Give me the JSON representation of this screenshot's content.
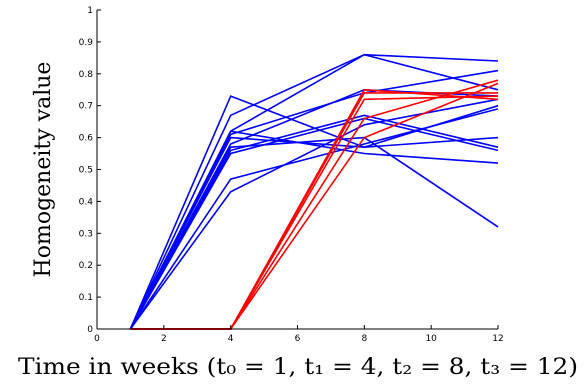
{
  "chart_data": {
    "type": "line",
    "title": "",
    "xlabel": "Time in weeks (t₀ = 1, t₁ = 4, t₂ = 8, t₃ = 12)",
    "ylabel": "Homogeneity value",
    "xlim": [
      0,
      12
    ],
    "ylim": [
      0,
      1
    ],
    "xticks": [
      0,
      2,
      4,
      6,
      8,
      10,
      12
    ],
    "yticks": [
      0,
      0.1,
      0.2,
      0.3,
      0.4,
      0.5,
      0.6,
      0.7,
      0.8,
      0.9,
      1
    ],
    "xtick_labels": [
      "0",
      "2",
      "4",
      "6",
      "8",
      "10",
      "12"
    ],
    "ytick_labels": [
      "0",
      "0.1",
      "0.2",
      "0.3",
      "0.4",
      "0.5",
      "0.6",
      "0.7",
      "0.8",
      "0.9",
      "1"
    ],
    "grid": false,
    "legend": "none",
    "x": [
      1,
      4,
      8,
      12
    ],
    "series": [
      {
        "color": "#0000ff",
        "values": [
          0,
          0.73,
          0.57,
          0.7
        ]
      },
      {
        "color": "#0000ff",
        "values": [
          0,
          0.67,
          0.86,
          0.84
        ]
      },
      {
        "color": "#0000ff",
        "values": [
          0,
          0.62,
          0.86,
          0.75
        ]
      },
      {
        "color": "#0000ff",
        "values": [
          0,
          0.61,
          0.74,
          0.81
        ]
      },
      {
        "color": "#0000ff",
        "values": [
          0,
          0.58,
          0.75,
          0.73
        ]
      },
      {
        "color": "#0000ff",
        "values": [
          0,
          0.6,
          0.57,
          0.6
        ]
      },
      {
        "color": "#0000ff",
        "values": [
          0,
          0.55,
          0.66,
          0.56
        ]
      },
      {
        "color": "#0000ff",
        "values": [
          0,
          0.56,
          0.67,
          0.57
        ]
      },
      {
        "color": "#0000ff",
        "values": [
          0,
          0.62,
          0.55,
          0.52
        ]
      },
      {
        "color": "#0000ff",
        "values": [
          0,
          0.57,
          0.6,
          0.32
        ]
      },
      {
        "color": "#0000ff",
        "values": [
          0,
          0.47,
          0.58,
          0.69
        ]
      },
      {
        "color": "#0000ff",
        "values": [
          0,
          0.43,
          0.64,
          0.72
        ]
      },
      {
        "color": "#ff0000",
        "values": [
          0,
          0,
          0.75,
          0.72
        ]
      },
      {
        "color": "#ff0000",
        "values": [
          0,
          0,
          0.74,
          0.74
        ]
      },
      {
        "color": "#ff0000",
        "values": [
          0,
          0,
          0.66,
          0.78
        ]
      },
      {
        "color": "#ff0000",
        "values": [
          0,
          0,
          0.6,
          0.77
        ]
      },
      {
        "color": "#ff0000",
        "values": [
          0,
          0,
          0.72,
          0.73
        ]
      }
    ]
  }
}
